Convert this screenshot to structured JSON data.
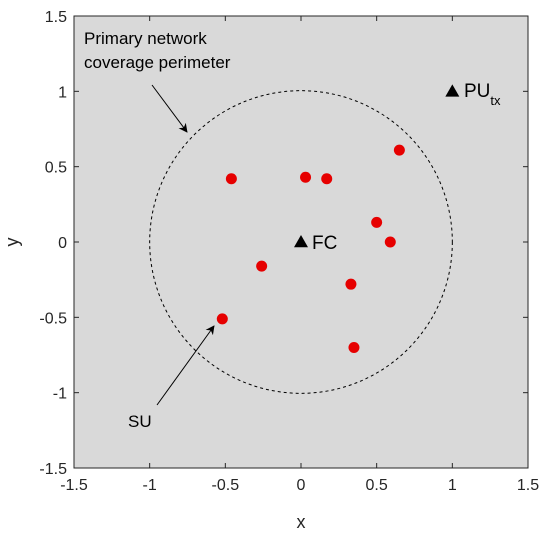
{
  "chart_data": {
    "type": "scatter",
    "xlabel": "x",
    "ylabel": "y",
    "xlim": [
      -1.5,
      1.5
    ],
    "ylim": [
      -1.5,
      1.5
    ],
    "xticks": [
      "-1.5",
      "-1",
      "-0.5",
      "0",
      "0.5",
      "1",
      "1.5"
    ],
    "yticks": [
      "-1.5",
      "-1",
      "-0.5",
      "0",
      "0.5",
      "1",
      "1.5"
    ],
    "grid": false,
    "background_color": "#d9d9d9",
    "point_color": "#e60000",
    "circle": {
      "center": [
        0,
        0
      ],
      "radius": 1,
      "style": "dashed"
    },
    "su_points": [
      {
        "x": 0.65,
        "y": 0.61
      },
      {
        "x": -0.46,
        "y": 0.42
      },
      {
        "x": 0.03,
        "y": 0.43
      },
      {
        "x": 0.17,
        "y": 0.42
      },
      {
        "x": 0.5,
        "y": 0.13
      },
      {
        "x": 0.59,
        "y": 0.0
      },
      {
        "x": -0.26,
        "y": -0.16
      },
      {
        "x": 0.33,
        "y": -0.28
      },
      {
        "x": -0.52,
        "y": -0.51
      },
      {
        "x": 0.35,
        "y": -0.7
      }
    ],
    "triangles": [
      {
        "id": "fc",
        "x": 0,
        "y": 0
      },
      {
        "id": "pu",
        "x": 1,
        "y": 1
      }
    ],
    "annotations": {
      "fc_label": "FC",
      "pu_label": "PU",
      "pu_subscript": "tx",
      "su_label": "SU",
      "coverage_line1": "Primary network",
      "coverage_line2": "coverage perimeter"
    }
  }
}
